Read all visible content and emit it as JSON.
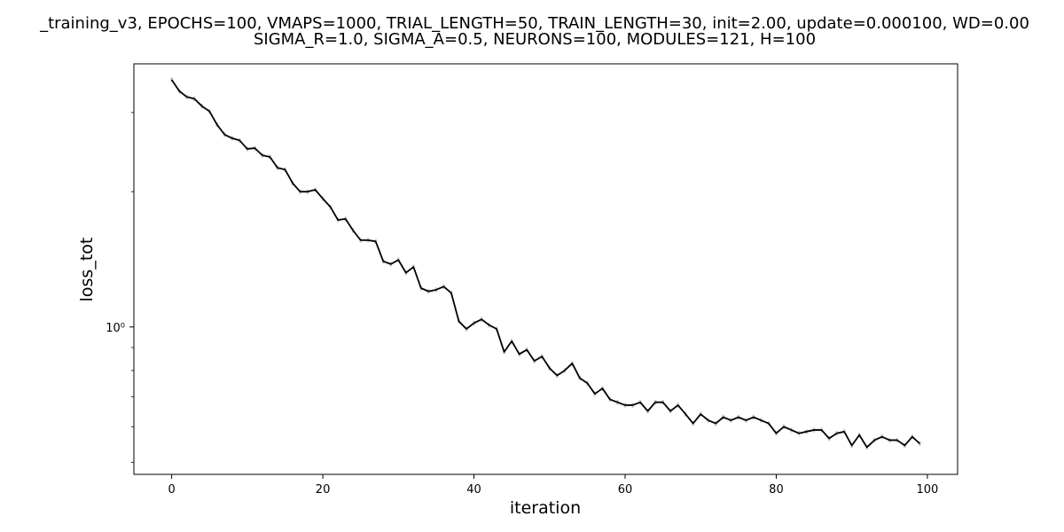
{
  "figure": {
    "title_line1": "_training_v3, EPOCHS=100, VMAPS=1000, TRIAL_LENGTH=50, TRAIN_LENGTH=30, init=2.00, update=0.000100, WD=0.00",
    "title_line2": "SIGMA_R=1.0, SIGMA_A=0.5, NEURONS=100, MODULES=121, H=100"
  },
  "chart_data": {
    "type": "line",
    "title": "_training_v3, EPOCHS=100, VMAPS=1000, TRIAL_LENGTH=50, TRAIN_LENGTH=30, init=2.00, update=0.000100, WD=0.00 SIGMA_R=1.0, SIGMA_A=0.5, NEURONS=100, MODULES=121, H=100",
    "xlabel": "iteration",
    "ylabel": "loss_tot",
    "yscale": "log",
    "xlim": [
      -5,
      104
    ],
    "ylim": [
      0.47,
      3.85
    ],
    "xticks": [
      0,
      20,
      40,
      60,
      80,
      100
    ],
    "xtick_labels": [
      "0",
      "20",
      "40",
      "60",
      "80",
      "100"
    ],
    "yticks_major": [
      1
    ],
    "ytick_labels_major": [
      "10⁰"
    ],
    "yticks_minor": [
      0.5,
      0.6,
      0.7,
      0.8,
      0.9,
      2,
      3
    ],
    "grid": false,
    "legend": "none",
    "colors": {
      "mean_line": "#000000",
      "error_bars": "#c8c8c8"
    },
    "x": [
      0,
      1,
      2,
      3,
      4,
      5,
      6,
      7,
      8,
      9,
      10,
      11,
      12,
      13,
      14,
      15,
      16,
      17,
      18,
      19,
      20,
      21,
      22,
      23,
      24,
      25,
      26,
      27,
      28,
      29,
      30,
      31,
      32,
      33,
      34,
      35,
      36,
      37,
      38,
      39,
      40,
      41,
      42,
      43,
      44,
      45,
      46,
      47,
      48,
      49,
      50,
      51,
      52,
      53,
      54,
      55,
      56,
      57,
      58,
      59,
      60,
      61,
      62,
      63,
      64,
      65,
      66,
      67,
      68,
      69,
      70,
      71,
      72,
      73,
      74,
      75,
      76,
      77,
      78,
      79,
      80,
      81,
      82,
      83,
      84,
      85,
      86,
      87,
      88,
      89,
      90,
      91,
      92,
      93,
      94,
      95,
      96,
      97,
      98,
      99
    ],
    "y": [
      3.55,
      3.35,
      3.25,
      3.22,
      3.1,
      3.02,
      2.82,
      2.68,
      2.63,
      2.6,
      2.49,
      2.5,
      2.41,
      2.39,
      2.26,
      2.24,
      2.09,
      2.0,
      2.0,
      2.02,
      1.93,
      1.85,
      1.73,
      1.74,
      1.64,
      1.56,
      1.56,
      1.55,
      1.4,
      1.38,
      1.41,
      1.32,
      1.36,
      1.22,
      1.2,
      1.21,
      1.23,
      1.19,
      1.03,
      0.99,
      1.02,
      1.04,
      1.01,
      0.99,
      0.88,
      0.93,
      0.87,
      0.89,
      0.84,
      0.86,
      0.81,
      0.78,
      0.8,
      0.83,
      0.77,
      0.75,
      0.71,
      0.73,
      0.69,
      0.68,
      0.67,
      0.67,
      0.68,
      0.65,
      0.68,
      0.68,
      0.65,
      0.67,
      0.64,
      0.61,
      0.64,
      0.62,
      0.61,
      0.63,
      0.62,
      0.63,
      0.62,
      0.63,
      0.62,
      0.61,
      0.58,
      0.6,
      0.59,
      0.58,
      0.585,
      0.59,
      0.59,
      0.565,
      0.58,
      0.585,
      0.545,
      0.575,
      0.54,
      0.56,
      0.57,
      0.56,
      0.56,
      0.545,
      0.57,
      0.55
    ],
    "err": 0.012
  }
}
